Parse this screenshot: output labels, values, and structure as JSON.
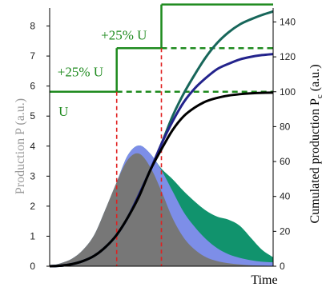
{
  "chart_data": {
    "type": "area",
    "xlabel": "Time",
    "ylabel_left": "Production P (a.u.)",
    "ylabel_right_main": "Cumulated production P",
    "ylabel_right_sub": "c",
    "ylabel_right_unit": " (a.u.)",
    "left_axis": {
      "ylim": [
        0,
        8.6
      ],
      "ticks": [
        0,
        1,
        2,
        3,
        4,
        5,
        6,
        7,
        8
      ]
    },
    "right_axis": {
      "ylim": [
        0,
        148
      ],
      "ticks": [
        0,
        20,
        40,
        60,
        80,
        100,
        120,
        140
      ]
    },
    "xlim": [
      0,
      10
    ],
    "annotations": [
      {
        "text": "U",
        "x": 0.4,
        "y": 100
      },
      {
        "text": "+25% U",
        "x": 0.35,
        "y": 108
      },
      {
        "text": "+25% U",
        "x": 2.3,
        "y": 129
      }
    ],
    "step_times": [
      3,
      5
    ],
    "u_levels": [
      100,
      125,
      150
    ],
    "colors": {
      "base": "#777777",
      "mid": "#7d8ee8",
      "high": "#11936d",
      "green": "#1e8a1e",
      "red": "#e02020",
      "blue_line": "#23238c",
      "teal_line": "#17665a",
      "black_line": "#000000"
    },
    "series": [
      {
        "kind": "area",
        "x": [
          0,
          0.5,
          1,
          1.5,
          2,
          2.5,
          3,
          3.5,
          4,
          4.5,
          5,
          5.5,
          6,
          6.5,
          7,
          7.5,
          8,
          8.5,
          9,
          9.5,
          10
        ],
        "values": [
          0,
          0.1,
          0.25,
          0.55,
          1.05,
          1.9,
          2.8,
          3.55,
          3.75,
          3.3,
          2.5,
          1.6,
          0.95,
          0.55,
          0.3,
          0.17,
          0.1,
          0.06,
          0.03,
          0.02,
          0.01
        ]
      },
      {
        "kind": "area",
        "x": [
          0,
          0.5,
          1,
          1.5,
          2,
          2.5,
          3,
          3.5,
          4,
          4.5,
          5,
          5.5,
          6,
          6.5,
          7,
          7.5,
          8,
          8.5,
          9,
          9.5,
          10
        ],
        "values": [
          0,
          0.1,
          0.25,
          0.55,
          1.05,
          1.9,
          2.8,
          3.7,
          4.02,
          3.75,
          3.2,
          2.5,
          1.8,
          1.3,
          0.9,
          0.6,
          0.4,
          0.28,
          0.2,
          0.15,
          0.13
        ]
      },
      {
        "kind": "area",
        "x": [
          0,
          0.5,
          1,
          1.5,
          2,
          2.5,
          3,
          3.5,
          4,
          4.5,
          5,
          5.5,
          6,
          6.5,
          7,
          7.5,
          8,
          8.5,
          9,
          9.5,
          10
        ],
        "values": [
          0,
          0.1,
          0.25,
          0.55,
          1.05,
          1.9,
          2.8,
          3.7,
          4.02,
          3.75,
          3.25,
          2.9,
          2.5,
          2.15,
          1.85,
          1.65,
          1.55,
          1.35,
          0.95,
          0.55,
          0.3
        ]
      },
      {
        "kind": "line",
        "x": [
          0,
          0.5,
          1,
          1.5,
          2,
          2.5,
          3,
          3.5,
          4,
          4.5,
          5,
          5.5,
          6,
          6.5,
          7,
          7.5,
          8,
          8.5,
          9,
          9.5,
          10
        ],
        "values": [
          0,
          0.3,
          1.2,
          3,
          6,
          11,
          18,
          28,
          40,
          55,
          67,
          78,
          86,
          91,
          94.5,
          96.5,
          97.8,
          98.6,
          99.1,
          99.4,
          99.5
        ]
      },
      {
        "kind": "line",
        "x": [
          0,
          0.5,
          1,
          1.5,
          2,
          2.5,
          3,
          3.5,
          4,
          4.5,
          5,
          5.5,
          6,
          6.5,
          7,
          7.5,
          8,
          8.5,
          9,
          9.5,
          10
        ],
        "values": [
          0,
          0.3,
          1.2,
          3,
          6,
          11,
          18,
          28,
          41,
          55,
          70,
          83,
          94,
          102,
          108,
          113,
          116,
          118.5,
          120,
          121,
          121.6
        ]
      },
      {
        "kind": "line",
        "x": [
          0,
          0.5,
          1,
          1.5,
          2,
          2.5,
          3,
          3.5,
          4,
          4.5,
          5,
          5.5,
          6,
          6.5,
          7,
          7.5,
          8,
          8.5,
          9,
          9.5,
          10
        ],
        "values": [
          0,
          0.3,
          1.2,
          3,
          6,
          11,
          18,
          28,
          41,
          55,
          70,
          86,
          99,
          110,
          120,
          128,
          134,
          138.5,
          141.5,
          144,
          146
        ]
      }
    ]
  }
}
